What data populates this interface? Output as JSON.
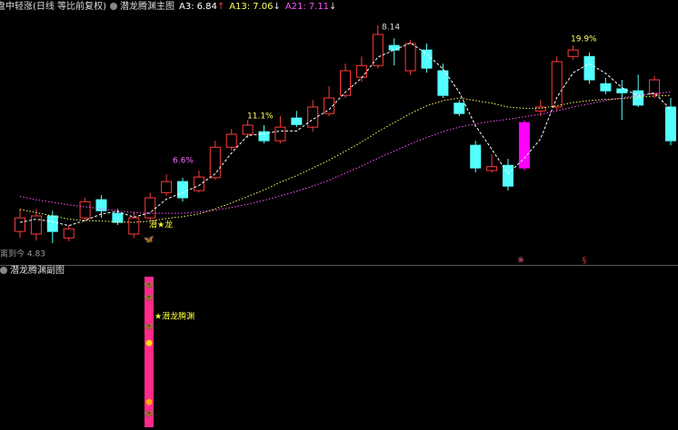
{
  "chart_data": {
    "type": "candlestick",
    "header": "盘中轻涨(日线 等比前复权)",
    "title": "潜龙腾渊主图",
    "ylim": [
      4.5,
      8.42
    ],
    "up_color": "#ff3b3b",
    "down_color": "#54ffff",
    "open": [
      4.96,
      4.92,
      5.2,
      4.86,
      5.17,
      5.45,
      5.24,
      4.92,
      5.17,
      5.56,
      5.73,
      5.59,
      5.79,
      6.26,
      6.46,
      6.5,
      6.36,
      6.71,
      6.57,
      6.78,
      7.06,
      7.34,
      7.52,
      7.83,
      7.44,
      7.76,
      7.44,
      6.94,
      6.29,
      5.9,
      5.98,
      5.94,
      6.82,
      6.88,
      7.66,
      7.66,
      7.24,
      7.16,
      7.13,
      7.08,
      6.88
    ],
    "high": [
      5.31,
      5.31,
      5.28,
      5.06,
      5.48,
      5.52,
      5.31,
      5.27,
      5.56,
      5.84,
      5.79,
      5.9,
      6.36,
      6.54,
      6.68,
      6.6,
      6.74,
      6.82,
      6.99,
      7.2,
      7.55,
      7.66,
      8.14,
      7.94,
      7.92,
      7.86,
      7.55,
      6.99,
      6.36,
      6.15,
      6.08,
      6.68,
      6.99,
      7.66,
      7.83,
      7.72,
      7.33,
      7.3,
      7.38,
      7.36,
      7.02
    ],
    "low": [
      4.86,
      4.82,
      4.78,
      4.81,
      5.12,
      5.17,
      5.06,
      4.86,
      5.12,
      5.51,
      5.42,
      5.56,
      5.76,
      6.21,
      6.4,
      6.32,
      6.32,
      6.57,
      6.5,
      6.74,
      7.02,
      7.27,
      7.48,
      7.52,
      7.38,
      7.41,
      7.02,
      6.74,
      5.87,
      5.87,
      5.59,
      5.9,
      6.74,
      6.82,
      7.61,
      7.24,
      7.08,
      6.68,
      6.88,
      7.02,
      6.29
    ],
    "close": [
      5.17,
      5.2,
      4.96,
      5.0,
      5.42,
      5.28,
      5.1,
      5.17,
      5.48,
      5.73,
      5.48,
      5.8,
      6.26,
      6.46,
      6.6,
      6.36,
      6.57,
      6.61,
      6.88,
      7.02,
      7.44,
      7.52,
      8.0,
      7.76,
      7.86,
      7.48,
      7.06,
      6.78,
      5.94,
      5.96,
      5.66,
      6.64,
      6.88,
      7.58,
      7.76,
      7.3,
      7.13,
      7.1,
      6.91,
      7.3,
      6.36
    ],
    "series": [
      {
        "name": "A3",
        "color": "#ffffff",
        "trend": "↑",
        "values": [
          5.1,
          5.15,
          5.11,
          5.05,
          5.13,
          5.23,
          5.27,
          5.18,
          5.25,
          5.46,
          5.56,
          5.67,
          5.85,
          6.17,
          6.44,
          6.47,
          6.51,
          6.51,
          6.69,
          6.84,
          7.11,
          7.33,
          7.65,
          7.76,
          7.87,
          7.7,
          7.47,
          7.11,
          6.59,
          6.23,
          5.85,
          6.09,
          6.39,
          7.03,
          7.41,
          7.55,
          7.4,
          7.18,
          7.05,
          7.1,
          6.84
        ]
      },
      {
        "name": "A13",
        "color": "#ffff66",
        "trend": "↓",
        "values": [
          5.3,
          5.25,
          5.2,
          5.15,
          5.13,
          5.12,
          5.11,
          5.1,
          5.12,
          5.16,
          5.19,
          5.23,
          5.31,
          5.4,
          5.5,
          5.6,
          5.72,
          5.82,
          5.94,
          6.06,
          6.2,
          6.34,
          6.5,
          6.64,
          6.78,
          6.9,
          6.98,
          7.02,
          6.98,
          6.94,
          6.88,
          6.86,
          6.86,
          6.9,
          6.95,
          6.98,
          7.0,
          7.01,
          7.03,
          7.05,
          7.06
        ]
      },
      {
        "name": "A21",
        "color": "#ff55ff",
        "trend": "↓",
        "values": [
          5.5,
          5.45,
          5.41,
          5.37,
          5.34,
          5.31,
          5.28,
          5.25,
          5.24,
          5.24,
          5.24,
          5.26,
          5.29,
          5.33,
          5.38,
          5.44,
          5.51,
          5.58,
          5.66,
          5.75,
          5.86,
          5.97,
          6.09,
          6.2,
          6.31,
          6.41,
          6.5,
          6.57,
          6.62,
          6.66,
          6.69,
          6.73,
          6.77,
          6.82,
          6.88,
          6.93,
          6.98,
          7.02,
          7.06,
          7.09,
          7.11
        ]
      }
    ],
    "annotations": [
      "6.6%",
      "11.1%",
      "19.9%"
    ],
    "signal_label": "潜★龙",
    "low_label": "离到今 4.83"
  },
  "sub_chart": {
    "title": "潜龙腾渊副图",
    "label": "★潜龙腾渊"
  }
}
